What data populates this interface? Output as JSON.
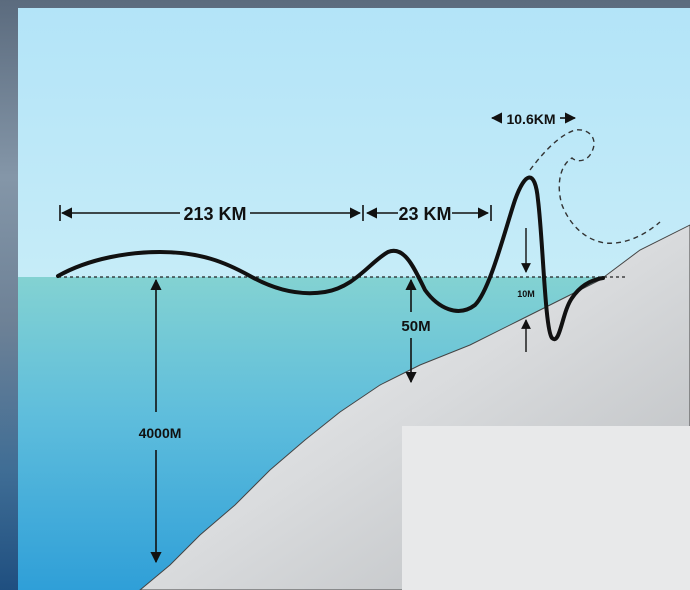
{
  "diagram": {
    "labels": {
      "first_wavelength": "213 KM",
      "second_wavelength": "23 KM",
      "third_wavelength": "10.6KM",
      "deep_ocean_depth": "4000M",
      "shelf_depth": "50M",
      "wave_height": "10M"
    },
    "colors": {
      "sky": "#b9e6f7",
      "water_top": "#7dcdd1",
      "water_bottom": "#3aa6d6",
      "land": "#d4d6d8",
      "wave_line": "#111111"
    }
  }
}
